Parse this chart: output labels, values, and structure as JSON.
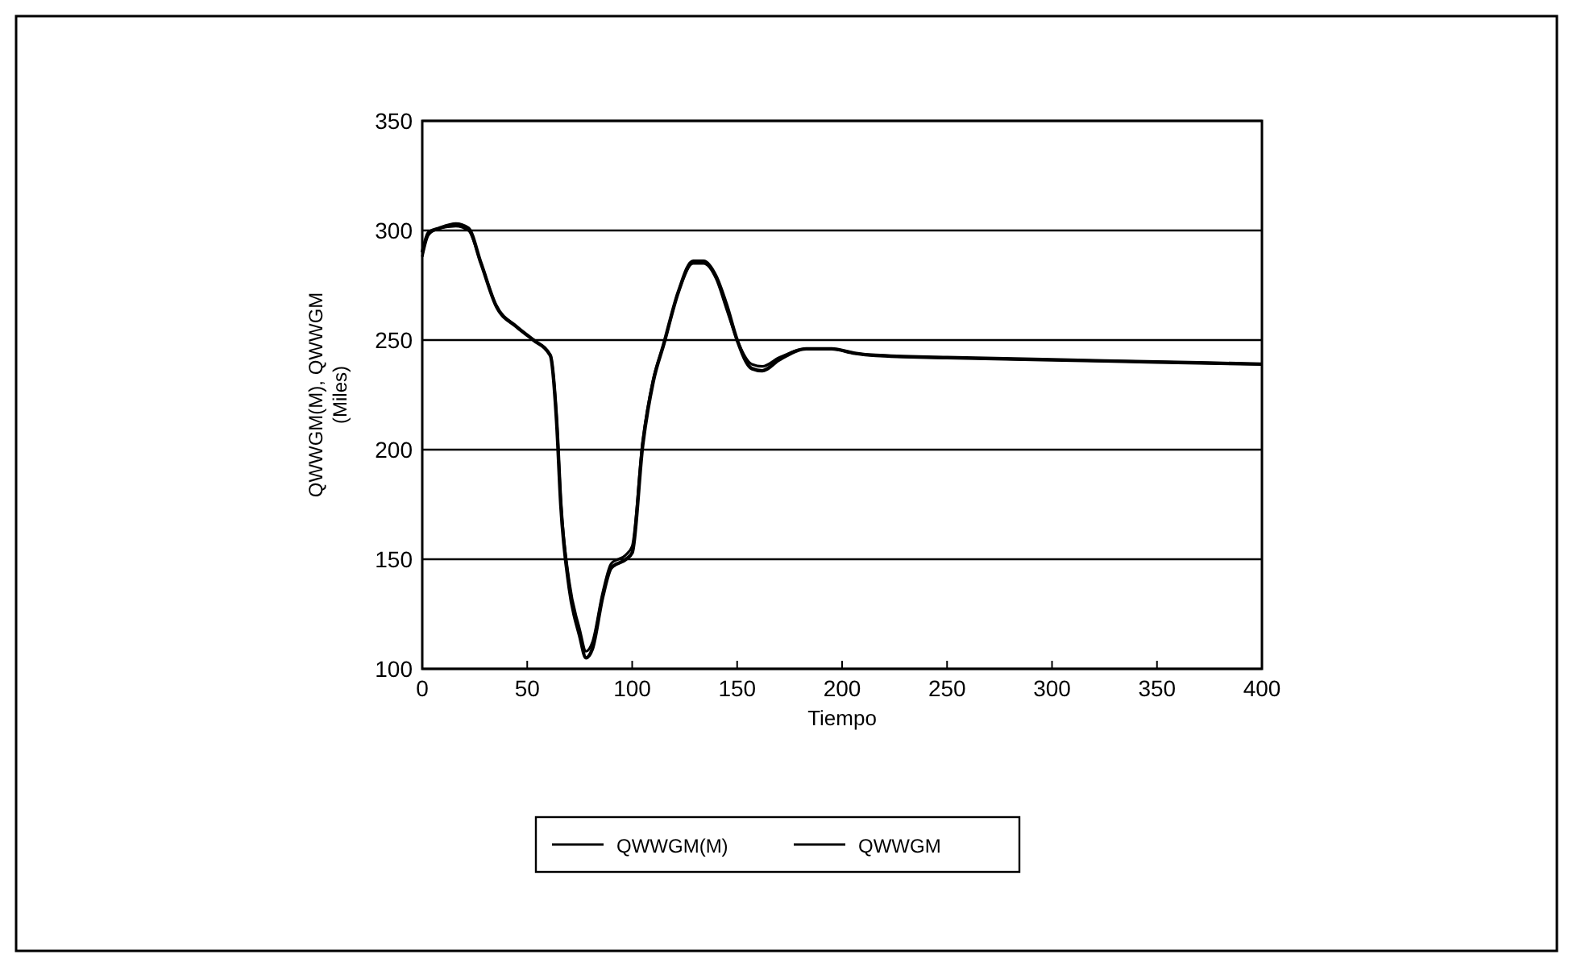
{
  "chart_data": {
    "type": "line",
    "xlabel": "Tiempo",
    "ylabel": "QWWGM(M),   QWWGM\n(Miles)",
    "xlim": [
      0,
      400
    ],
    "ylim": [
      100,
      350
    ],
    "xticks": [
      0,
      50,
      100,
      150,
      200,
      250,
      300,
      350,
      400
    ],
    "yticks": [
      100,
      150,
      200,
      250,
      300,
      350
    ],
    "grid": "y",
    "legend": "bottom",
    "marker": "none",
    "line_style": "solid",
    "series": [
      {
        "name": "QWWGM(M)",
        "color": "#000000",
        "x": [
          0,
          3,
          8,
          16,
          22,
          28,
          35,
          45,
          53,
          61,
          64,
          66,
          70,
          75,
          78,
          81,
          86,
          90,
          97,
          100,
          105,
          110,
          115,
          122,
          129,
          134,
          140,
          145,
          150,
          157,
          162,
          170,
          183,
          195,
          206,
          216,
          250,
          300,
          350,
          400
        ],
        "values": [
          288,
          298,
          301,
          302,
          300,
          285,
          266,
          256,
          250,
          243,
          215,
          177,
          140,
          118,
          108,
          112,
          135,
          148,
          152,
          156,
          204,
          232,
          248,
          272,
          285,
          285,
          278,
          264,
          250,
          239,
          238,
          242,
          246,
          246,
          244,
          243,
          242,
          241,
          240,
          239
        ]
      },
      {
        "name": "QWWGM",
        "color": "#000000",
        "x": [
          0,
          3,
          8,
          16,
          22,
          28,
          35,
          45,
          53,
          61,
          64,
          66,
          70,
          75,
          78,
          81,
          86,
          90,
          97,
          100,
          105,
          110,
          115,
          122,
          129,
          134,
          140,
          145,
          150,
          157,
          162,
          170,
          183,
          195,
          206,
          216,
          250,
          300,
          350,
          400
        ],
        "values": [
          290,
          299,
          301,
          303,
          301,
          285,
          266,
          256,
          250,
          243,
          213,
          175,
          137,
          115,
          105,
          109,
          133,
          146,
          150,
          153,
          202,
          231,
          248,
          272,
          286,
          286,
          279,
          266,
          250,
          237,
          236,
          241,
          246,
          246,
          244,
          243,
          242,
          241,
          240,
          239
        ]
      }
    ]
  }
}
